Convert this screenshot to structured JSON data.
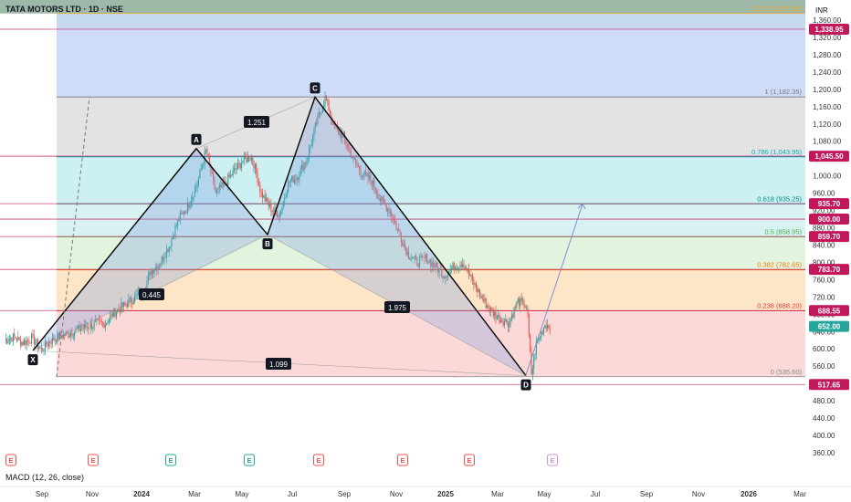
{
  "title": "TATA MOTORS LTD · 1D · NSE",
  "currency": "INR",
  "macd_label": "MACD (12, 26, close)",
  "colors": {
    "up": "#26a69a",
    "down": "#ef5350",
    "pattern_line": "#000000",
    "pattern_fill": "#9fb4e6",
    "fib_line": "#ef5350"
  },
  "chart_data": {
    "type": "candlestick",
    "symbol": "TATA MOTORS LTD",
    "interval": "1D",
    "exchange": "NSE",
    "ylim": [
      340,
      1380
    ],
    "y_ticks": [
      "1,360.00",
      "1,320.00",
      "1,280.00",
      "1,240.00",
      "1,200.00",
      "1,160.00",
      "1,120.00",
      "1,080.00",
      "1,040.00",
      "1,000.00",
      "960.00",
      "920.00",
      "880.00",
      "840.00",
      "800.00",
      "760.00",
      "720.00",
      "680.00",
      "640.00",
      "600.00",
      "560.00",
      "520.00",
      "480.00",
      "440.00",
      "400.00",
      "360.00"
    ],
    "x_ticks": [
      "Sep",
      "Nov",
      "2024",
      "Mar",
      "May",
      "Jul",
      "Sep",
      "Nov",
      "2025",
      "Mar",
      "May",
      "Jul",
      "Sep",
      "Nov",
      "2026",
      "Mar"
    ],
    "price_path": [
      [
        0,
        620
      ],
      [
        10,
        628
      ],
      [
        20,
        614
      ],
      [
        30,
        625
      ],
      [
        40,
        598
      ],
      [
        50,
        618
      ],
      [
        60,
        630
      ],
      [
        70,
        635
      ],
      [
        80,
        645
      ],
      [
        90,
        652
      ],
      [
        100,
        658
      ],
      [
        110,
        660
      ],
      [
        120,
        685
      ],
      [
        130,
        700
      ],
      [
        140,
        715
      ],
      [
        150,
        730
      ],
      [
        160,
        780
      ],
      [
        170,
        800
      ],
      [
        180,
        840
      ],
      [
        190,
        900
      ],
      [
        200,
        930
      ],
      [
        210,
        980
      ],
      [
        220,
        1060
      ],
      [
        230,
        960
      ],
      [
        240,
        980
      ],
      [
        250,
        1010
      ],
      [
        260,
        1035
      ],
      [
        270,
        1045
      ],
      [
        280,
        960
      ],
      [
        290,
        925
      ],
      [
        300,
        910
      ],
      [
        310,
        985
      ],
      [
        320,
        1000
      ],
      [
        330,
        1040
      ],
      [
        340,
        1120
      ],
      [
        350,
        1182
      ],
      [
        360,
        1110
      ],
      [
        370,
        1090
      ],
      [
        380,
        1040
      ],
      [
        390,
        1005
      ],
      [
        400,
        990
      ],
      [
        410,
        945
      ],
      [
        420,
        920
      ],
      [
        430,
        870
      ],
      [
        440,
        820
      ],
      [
        450,
        800
      ],
      [
        460,
        810
      ],
      [
        470,
        790
      ],
      [
        480,
        770
      ],
      [
        490,
        790
      ],
      [
        500,
        800
      ],
      [
        510,
        760
      ],
      [
        520,
        720
      ],
      [
        530,
        690
      ],
      [
        540,
        670
      ],
      [
        550,
        660
      ],
      [
        560,
        710
      ],
      [
        570,
        698
      ],
      [
        575,
        540
      ],
      [
        580,
        610
      ],
      [
        590,
        658
      ],
      [
        595,
        652
      ]
    ],
    "harmonic_pattern": {
      "points": [
        {
          "label": "X",
          "value": 596
        },
        {
          "label": "A",
          "value": 1063
        },
        {
          "label": "B",
          "value": 864
        },
        {
          "label": "C",
          "value": 1182
        },
        {
          "label": "D",
          "value": 538
        }
      ],
      "ratios": [
        "1.251",
        "0.445",
        "1.975",
        "1.099"
      ]
    },
    "fib_levels": [
      {
        "label": "1.272 (1,375.26)",
        "value": 1375.26
      },
      {
        "label": "1 (1,182.35)",
        "value": 1182.35
      },
      {
        "label": "0.786 (1,043.95)",
        "value": 1043.95
      },
      {
        "label": "0.618 (935.25)",
        "value": 935.25
      },
      {
        "label": "0.5 (858.95)",
        "value": 858.95
      },
      {
        "label": "0.382 (782.65)",
        "value": 782.65
      },
      {
        "label": "0.236 (688.20)",
        "value": 688.2
      },
      {
        "label": "0 (535.60)",
        "value": 535.6
      }
    ],
    "price_labels": [
      {
        "text": "1,338.95",
        "value": 1338.95,
        "color": "#c2185b"
      },
      {
        "text": "1,045.50",
        "value": 1045.5,
        "color": "#c2185b"
      },
      {
        "text": "935.70",
        "value": 935.7,
        "color": "#c2185b"
      },
      {
        "text": "900.00",
        "value": 900,
        "color": "#c2185b"
      },
      {
        "text": "859.70",
        "value": 859.7,
        "color": "#c2185b"
      },
      {
        "text": "783.70",
        "value": 783.7,
        "color": "#c2185b"
      },
      {
        "text": "688.55",
        "value": 688.55,
        "color": "#c2185b"
      },
      {
        "text": "652.00",
        "value": 652,
        "color": "#26a69a"
      },
      {
        "text": "517.65",
        "value": 517.65,
        "color": "#c2185b"
      }
    ],
    "earnings_markers": [
      {
        "label": "E",
        "color": "#ef5350"
      },
      {
        "label": "E",
        "color": "#ef5350"
      },
      {
        "label": "E",
        "color": "#26a69a"
      },
      {
        "label": "E",
        "color": "#26a69a"
      },
      {
        "label": "E",
        "color": "#ef5350"
      },
      {
        "label": "E",
        "color": "#ef5350"
      },
      {
        "label": "E",
        "color": "#ef5350"
      },
      {
        "label": "E",
        "color": "#ce93d8"
      }
    ]
  }
}
